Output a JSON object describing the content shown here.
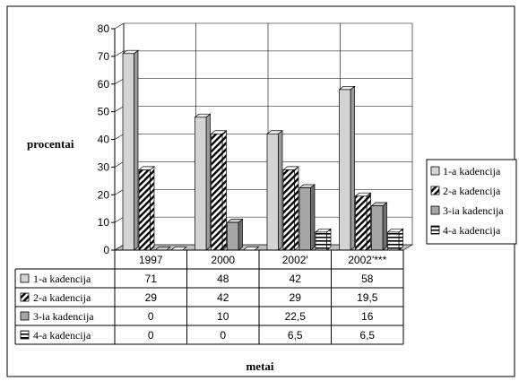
{
  "chart_data": {
    "type": "bar",
    "ylabel": "procentai",
    "xlabel": "metai",
    "ylim": [
      0,
      80
    ],
    "yticks": [
      0,
      10,
      20,
      30,
      40,
      50,
      60,
      70,
      80
    ],
    "categories": [
      "1997",
      "2000",
      "2002'",
      "2002'***"
    ],
    "grid": true,
    "legend_position": "right",
    "series": [
      {
        "name": "1-a kadencija",
        "values": [
          71,
          48,
          42,
          58
        ],
        "display": [
          "71",
          "48",
          "42",
          "58"
        ],
        "pattern": "solid-light",
        "color": "#d9d9d9"
      },
      {
        "name": "2-a kadencija",
        "values": [
          29,
          42,
          29,
          19.5
        ],
        "display": [
          "29",
          "42",
          "29",
          "19,5"
        ],
        "pattern": "diagonal",
        "color": "#ffffff"
      },
      {
        "name": "3-ia kadencija",
        "values": [
          0,
          10,
          22.5,
          16
        ],
        "display": [
          "0",
          "10",
          "22,5",
          "16"
        ],
        "pattern": "solid-mid",
        "color": "#a6a6a6"
      },
      {
        "name": "4-a kadencija",
        "values": [
          0,
          0,
          6.5,
          6.5
        ],
        "display": [
          "0",
          "0",
          "6,5",
          "6,5"
        ],
        "pattern": "horizontal",
        "color": "#ffffff"
      }
    ]
  }
}
